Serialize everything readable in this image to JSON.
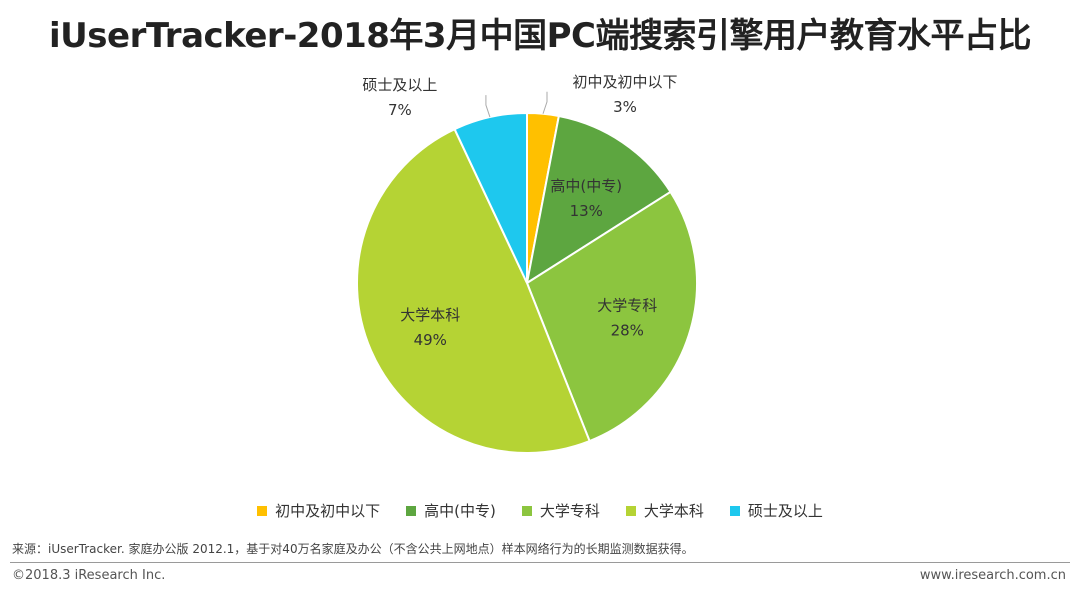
{
  "title": "iUserTracker-2018年3月中国PC端搜索引擎用户教育水平占比",
  "chart_data": {
    "type": "pie",
    "title": "iUserTracker-2018年3月中国PC端搜索引擎用户教育水平占比",
    "categories": [
      "初中及初中以下",
      "高中(中专)",
      "大学专科",
      "大学本科",
      "硕士及以上"
    ],
    "values": [
      3,
      13,
      28,
      49,
      7
    ],
    "value_labels": [
      "3%",
      "13%",
      "28%",
      "49%",
      "7%"
    ],
    "colors": [
      "#FFC000",
      "#5DA640",
      "#8CC53F",
      "#B5D334",
      "#1EC8EE"
    ],
    "legend_position": "bottom"
  },
  "source": "来源：iUserTracker. 家庭办公版 2012.1，基于对40万名家庭及办公（不含公共上网地点）样本网络行为的长期监测数据获得。",
  "footer": {
    "copyright": "©2018.3 iResearch Inc.",
    "website": "www.iresearch.com.cn"
  }
}
